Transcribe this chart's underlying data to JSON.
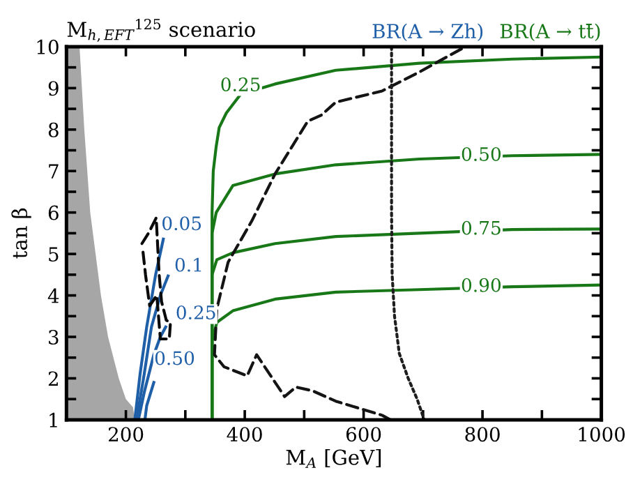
{
  "chart_data": {
    "type": "line",
    "title": "M$_{h,EFT}$$^{125}$ scenario",
    "xlabel": "M$_{A}$ [GeV]",
    "ylabel": "tan β",
    "xlim": [
      100,
      1000
    ],
    "ylim": [
      1,
      10
    ],
    "xticks": [
      200,
      {
        "value": 300,
        "label": null
      },
      400,
      {
        "value": 500,
        "label": null
      },
      600,
      {
        "value": 700,
        "label": null
      },
      800,
      {
        "value": 900,
        "label": null
      },
      1000
    ],
    "yticks": [
      1,
      {
        "value": 1.5,
        "label": null
      },
      2,
      {
        "value": 2.5,
        "label": null
      },
      3,
      {
        "value": 3.5,
        "label": null
      },
      4,
      {
        "value": 4.5,
        "label": null
      },
      5,
      {
        "value": 5.5,
        "label": null
      },
      6,
      {
        "value": 6.5,
        "label": null
      },
      7,
      {
        "value": 7.5,
        "label": null
      },
      8,
      {
        "value": 8.5,
        "label": null
      },
      9,
      {
        "value": 9.5,
        "label": null
      },
      10
    ],
    "grid": false,
    "legend": false,
    "series": [
      {
        "type": "area",
        "color": "#a6a6a6",
        "x": [
          100,
          122,
          130,
          140,
          158,
          170,
          188,
          200,
          212,
          215
        ],
        "values": [
          10,
          10,
          8,
          6,
          4,
          3,
          2,
          1.5,
          1.3,
          1
        ]
      },
      {
        "name": "BR(A → Zh)",
        "color": "#1f5fa8",
        "x": [
          215,
          224,
          235,
          250,
          263
        ],
        "values": [
          1,
          2.12,
          3.24,
          4.5,
          5.36
        ]
      },
      {
        "color": "#1f5fa8",
        "x": [
          218,
          231,
          243,
          258,
          271
        ],
        "values": [
          1,
          2.12,
          3.24,
          4.0,
          4.47
        ]
      },
      {
        "color": "#1f5fa8",
        "x": [
          221,
          231,
          247,
          258,
          267
        ],
        "values": [
          1,
          1.67,
          2.57,
          3.0,
          3.24
        ]
      },
      {
        "color": "#1f5fa8",
        "x": [
          232,
          235,
          247
        ],
        "values": [
          1,
          1.34,
          1.9
        ]
      },
      {
        "name": "BR(A → tt̄)",
        "color": "#187818",
        "x": [
          345,
          345,
          347,
          352,
          357,
          369,
          393,
          451,
          553,
          694,
          850,
          1000
        ],
        "values": [
          1,
          6,
          7,
          7.6,
          8.05,
          8.4,
          8.85,
          9.1,
          9.43,
          9.6,
          9.7,
          9.75
        ]
      },
      {
        "color": "#187818",
        "x": [
          345,
          345,
          352,
          380,
          451,
          553,
          694,
          850,
          1000
        ],
        "values": [
          1,
          5.5,
          6.0,
          6.65,
          6.93,
          7.15,
          7.29,
          7.37,
          7.4
        ]
      },
      {
        "color": "#187818",
        "x": [
          345,
          345,
          353,
          380,
          451,
          553,
          694,
          850,
          1000
        ],
        "values": [
          1,
          4.5,
          4.86,
          5.03,
          5.25,
          5.42,
          5.5,
          5.59,
          5.6
        ]
      },
      {
        "color": "#187818",
        "x": [
          345,
          345,
          353,
          380,
          451,
          553,
          694,
          850,
          1000
        ],
        "values": [
          1,
          2.9,
          3.35,
          3.63,
          3.91,
          4.08,
          4.14,
          4.21,
          4.25
        ]
      },
      {
        "color": "#0a0a0a",
        "line_style": "dashed",
        "x": [
          227,
          238,
          251,
          256,
          260,
          268,
          275,
          273,
          258,
          252,
          240,
          233,
          228
        ],
        "values": [
          5.25,
          5.5,
          5.87,
          4.5,
          3.85,
          3.4,
          3.35,
          2.95,
          2.95,
          4.0,
          3.75,
          4.5,
          5.15
        ]
      },
      {
        "color": "#141414",
        "line_style": "dashed",
        "x": [
          645,
          631,
          553,
          514,
          486,
          467,
          420,
          404,
          365,
          349,
          353,
          372,
          412,
          451,
          506,
          529,
          553,
          631,
          694,
          765,
          770
        ],
        "values": [
          1,
          1.11,
          1.45,
          1.7,
          1.79,
          1.56,
          2.57,
          2.06,
          2.28,
          2.57,
          3.68,
          4.8,
          5.8,
          6.93,
          8.2,
          8.35,
          8.66,
          8.93,
          9.39,
          9.95,
          10
        ]
      },
      {
        "color": "#1e1e1e",
        "line_style": "dotted",
        "x": [
          647,
          647,
          648,
          652,
          660,
          675,
          690,
          702
        ],
        "values": [
          10,
          6,
          4.5,
          3.5,
          2.6,
          2.0,
          1.5,
          1
        ]
      }
    ],
    "annotations": [
      {
        "text": "0.05",
        "x": 294,
        "y": 5.7
      },
      {
        "text": "0.1",
        "x": 306,
        "y": 4.7
      },
      {
        "text": "0.25",
        "x": 318,
        "y": 3.55
      },
      {
        "text": "0.50",
        "x": 282,
        "y": 2.45
      },
      {
        "text": "0.25",
        "x": 393,
        "y": 9.05
      },
      {
        "text": "0.50",
        "x": 798,
        "y": 7.37
      },
      {
        "text": "0.75",
        "x": 798,
        "y": 5.59
      },
      {
        "text": "0.90",
        "x": 798,
        "y": 4.21
      }
    ]
  }
}
